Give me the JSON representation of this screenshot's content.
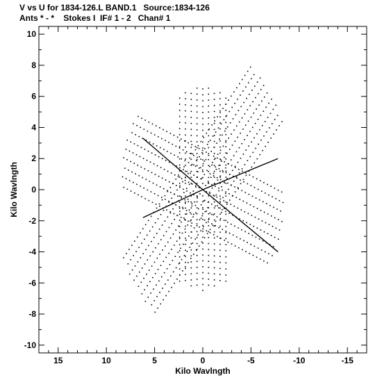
{
  "header": {
    "line1": "V vs U for 1834-126.L BAND.1   Source:1834-126",
    "line2": "Ants * - *    Stokes I  IF# 1 - 2   Chan# 1"
  },
  "chart_data": {
    "type": "scatter",
    "title": "V vs U for 1834-126.L BAND.1   Source:1834-126",
    "subtitle": "Ants * - *    Stokes I  IF# 1 - 2   Chan# 1",
    "xlabel": "Kilo Wavlngth",
    "ylabel": "Kilo Wavlngth",
    "xlim": [
      17,
      -17
    ],
    "ylim": [
      -10.5,
      10.5
    ],
    "x_reversed": true,
    "xticks": [
      15,
      10,
      5,
      0,
      -5,
      -10,
      -15
    ],
    "yticks": [
      10,
      8,
      6,
      4,
      2,
      0,
      -2,
      -4,
      -6,
      -8,
      -10
    ],
    "grid": false,
    "marker": "dot",
    "color": "#000000",
    "arms": [
      {
        "name": "arm-up",
        "direction": [
          0.0,
          1.0
        ],
        "length": 6.8
      },
      {
        "name": "arm-upper-left",
        "direction": [
          -0.73,
          0.68
        ],
        "length": 9.5
      },
      {
        "name": "arm-lower-left",
        "direction": [
          -0.95,
          -0.31
        ],
        "length": 8.6
      },
      {
        "name": "arm-down",
        "direction": [
          0.0,
          -1.0
        ],
        "length": 6.5
      },
      {
        "name": "arm-lower-right",
        "direction": [
          0.73,
          -0.68
        ],
        "length": 9.5
      },
      {
        "name": "arm-upper-right",
        "direction": [
          0.95,
          0.31
        ],
        "length": 8.6
      }
    ],
    "solid_lines": [
      {
        "x": [
          6.2,
          0.0
        ],
        "y": [
          3.3,
          0.0
        ]
      },
      {
        "x": [
          0.0,
          -7.8
        ],
        "y": [
          0.0,
          2.0
        ]
      },
      {
        "x": [
          -7.8,
          0.0
        ],
        "y": [
          -4.0,
          0.0
        ]
      },
      {
        "x": [
          0.0,
          6.2
        ],
        "y": [
          0.0,
          -1.8
        ]
      }
    ]
  }
}
